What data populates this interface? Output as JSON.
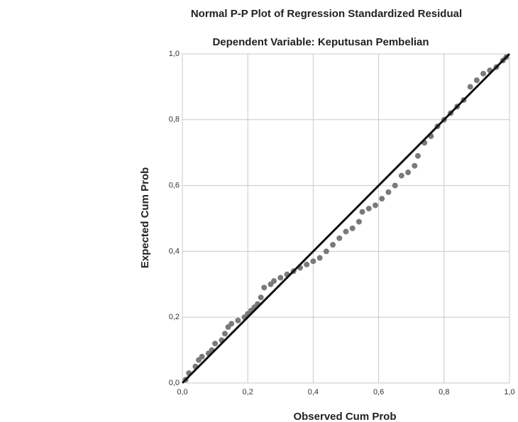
{
  "chart_data": {
    "type": "scatter",
    "title": "Normal P-P Plot of Regression Standardized Residual",
    "subtitle": "Dependent Variable: Keputusan Pembelian",
    "x_label": "Observed Cum Prob",
    "y_label": "Expected Cum Prob",
    "color": "#7a7a7a",
    "line_color": "#111111",
    "grid": true,
    "xlim": [
      0,
      1
    ],
    "ylim": [
      0,
      1
    ],
    "xticks": [
      {
        "value": 0,
        "label": "0,0"
      },
      {
        "value": 0.2,
        "label": "0,2"
      },
      {
        "value": 0.4,
        "label": "0,4"
      },
      {
        "value": 0.6,
        "label": "0,6"
      },
      {
        "value": 0.8,
        "label": "0,8"
      },
      {
        "value": 1,
        "label": "1,0"
      }
    ],
    "yticks": [
      {
        "value": 0,
        "label": "0,0"
      },
      {
        "value": 0.2,
        "label": "0,2"
      },
      {
        "value": 0.4,
        "label": "0,4"
      },
      {
        "value": 0.6,
        "label": "0,6"
      },
      {
        "value": 0.8,
        "label": "0,8"
      },
      {
        "value": 1,
        "label": "1,0"
      }
    ],
    "x": [
      0.01,
      0.02,
      0.04,
      0.05,
      0.06,
      0.08,
      0.09,
      0.1,
      0.12,
      0.13,
      0.14,
      0.15,
      0.17,
      0.19,
      0.2,
      0.21,
      0.22,
      0.23,
      0.24,
      0.25,
      0.27,
      0.28,
      0.3,
      0.32,
      0.34,
      0.36,
      0.38,
      0.4,
      0.42,
      0.44,
      0.46,
      0.48,
      0.5,
      0.52,
      0.54,
      0.55,
      0.57,
      0.59,
      0.61,
      0.63,
      0.65,
      0.67,
      0.69,
      0.71,
      0.72,
      0.74,
      0.76,
      0.78,
      0.8,
      0.82,
      0.84,
      0.86,
      0.88,
      0.9,
      0.92,
      0.94,
      0.96,
      0.98,
      0.99
    ],
    "values": [
      0.01,
      0.03,
      0.05,
      0.07,
      0.08,
      0.09,
      0.1,
      0.12,
      0.13,
      0.15,
      0.17,
      0.18,
      0.19,
      0.2,
      0.21,
      0.22,
      0.23,
      0.24,
      0.26,
      0.29,
      0.3,
      0.31,
      0.32,
      0.33,
      0.34,
      0.35,
      0.36,
      0.37,
      0.38,
      0.4,
      0.42,
      0.44,
      0.46,
      0.47,
      0.49,
      0.52,
      0.53,
      0.54,
      0.56,
      0.58,
      0.6,
      0.63,
      0.64,
      0.66,
      0.69,
      0.73,
      0.75,
      0.78,
      0.8,
      0.82,
      0.84,
      0.86,
      0.9,
      0.92,
      0.94,
      0.95,
      0.96,
      0.98,
      0.99
    ]
  }
}
